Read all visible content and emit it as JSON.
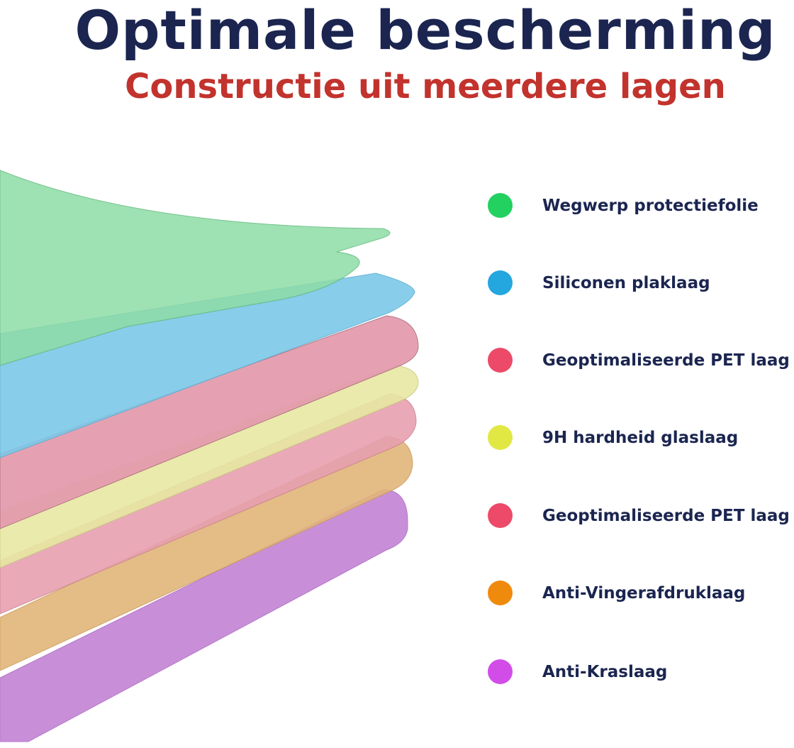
{
  "header": {
    "title": "Optimale bescherming",
    "subtitle": "Constructie uit meerdere lagen"
  },
  "legend": [
    {
      "label": "Wegwerp protectiefolie",
      "color": "#22d160"
    },
    {
      "label": "Siliconen plaklaag",
      "color": "#24a6de"
    },
    {
      "label": "Geoptimaliseerde PET laag",
      "color": "#ec4a68"
    },
    {
      "label": "9H hardheid glaslaag",
      "color": "#e1e844"
    },
    {
      "label": "Geoptimaliseerde PET laag",
      "color": "#ec4a68"
    },
    {
      "label": "Anti-Vingerafdruklaag",
      "color": "#f08a0c"
    },
    {
      "label": "Anti-Kraslaag",
      "color": "#d24de8"
    }
  ],
  "layer_colors": [
    "#c68ad6",
    "#e2b57a",
    "#e7a0b0",
    "#e7e8a2",
    "#e49cae",
    "#7cc8e8",
    "#8edca6"
  ]
}
